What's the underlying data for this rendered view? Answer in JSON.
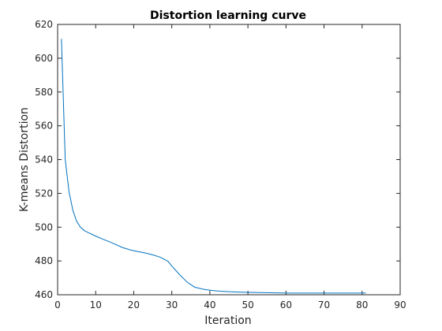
{
  "chart_data": {
    "type": "line",
    "title": "Distortion learning curve",
    "xlabel": "Iteration",
    "ylabel": "K-means Distortion",
    "xlim": [
      0,
      90
    ],
    "ylim": [
      460,
      620
    ],
    "xticks": [
      "0",
      "10",
      "20",
      "30",
      "40",
      "50",
      "60",
      "70",
      "80",
      "90"
    ],
    "yticks": [
      "460",
      "480",
      "500",
      "520",
      "540",
      "560",
      "580",
      "600",
      "620"
    ],
    "grid": false,
    "box": true,
    "series": [
      {
        "color": "#0072bd",
        "x": [
          1,
          2,
          3,
          4,
          5,
          6,
          7,
          8,
          9,
          10,
          12,
          14,
          15,
          17,
          19,
          21,
          23,
          25,
          27,
          29,
          30,
          32,
          34,
          36,
          38,
          40,
          42,
          45,
          50,
          55,
          60,
          65,
          70,
          75,
          81
        ],
        "y": [
          611.5,
          540.0,
          521.0,
          510.0,
          503.5,
          500.0,
          498.0,
          496.8,
          495.8,
          494.7,
          492.8,
          491.0,
          490.0,
          488.0,
          486.6,
          485.6,
          484.7,
          483.6,
          482.2,
          479.8,
          477.0,
          472.0,
          467.5,
          464.5,
          463.4,
          462.7,
          462.2,
          461.8,
          461.4,
          461.2,
          461.0,
          461.0,
          461.0,
          461.0,
          461.0
        ]
      }
    ]
  }
}
